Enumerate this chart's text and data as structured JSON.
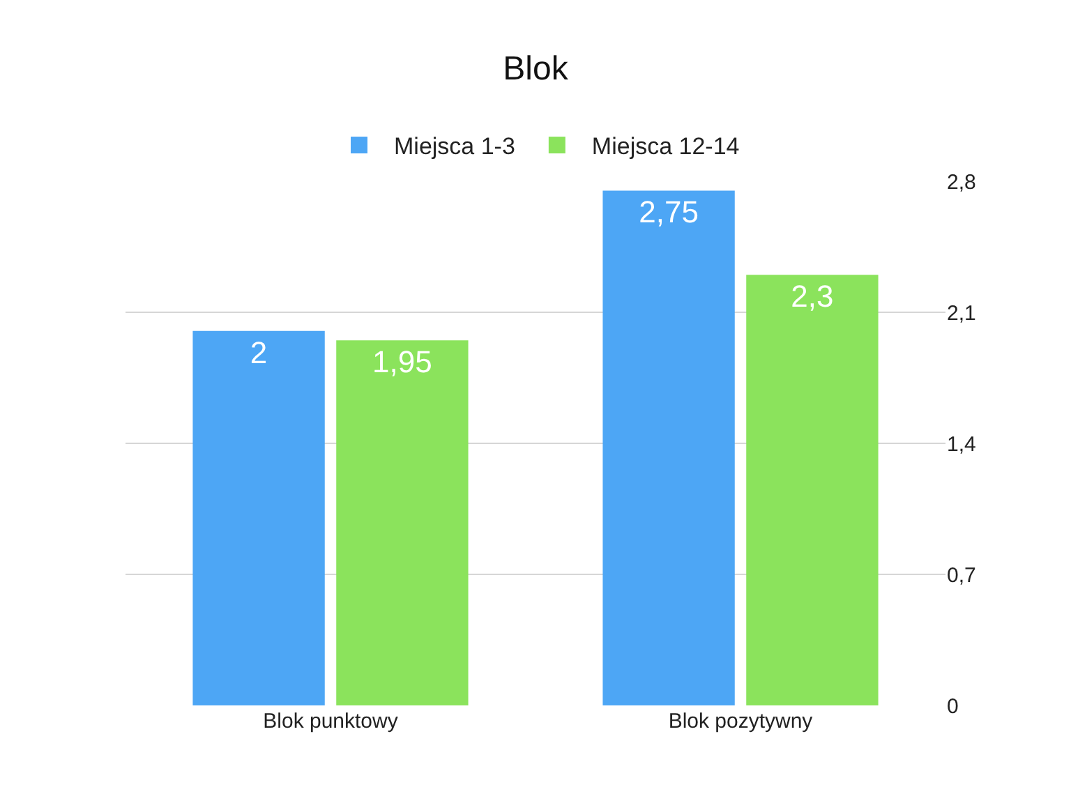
{
  "chart_data": {
    "type": "bar",
    "title": "Blok",
    "categories": [
      "Blok punktowy",
      "Blok pozytywny"
    ],
    "series": [
      {
        "name": "Miejsca 1-3",
        "color": "#4da6f5",
        "values": [
          2,
          2.75
        ],
        "value_labels": [
          "2",
          "2,75"
        ]
      },
      {
        "name": "Miejsca 12-14",
        "color": "#8be35c",
        "values": [
          1.95,
          2.3
        ],
        "value_labels": [
          "1,95",
          "2,3"
        ]
      }
    ],
    "ylim": [
      0,
      2.8
    ],
    "yticks": [
      0,
      {
        "value": 0.7,
        "label": "0,7"
      },
      {
        "value": 1.4,
        "label": "1,4"
      },
      {
        "value": 2.1,
        "label": "2,1"
      },
      {
        "value": 2.8,
        "label": "2,8"
      }
    ],
    "grid": "y",
    "legend": "top"
  }
}
